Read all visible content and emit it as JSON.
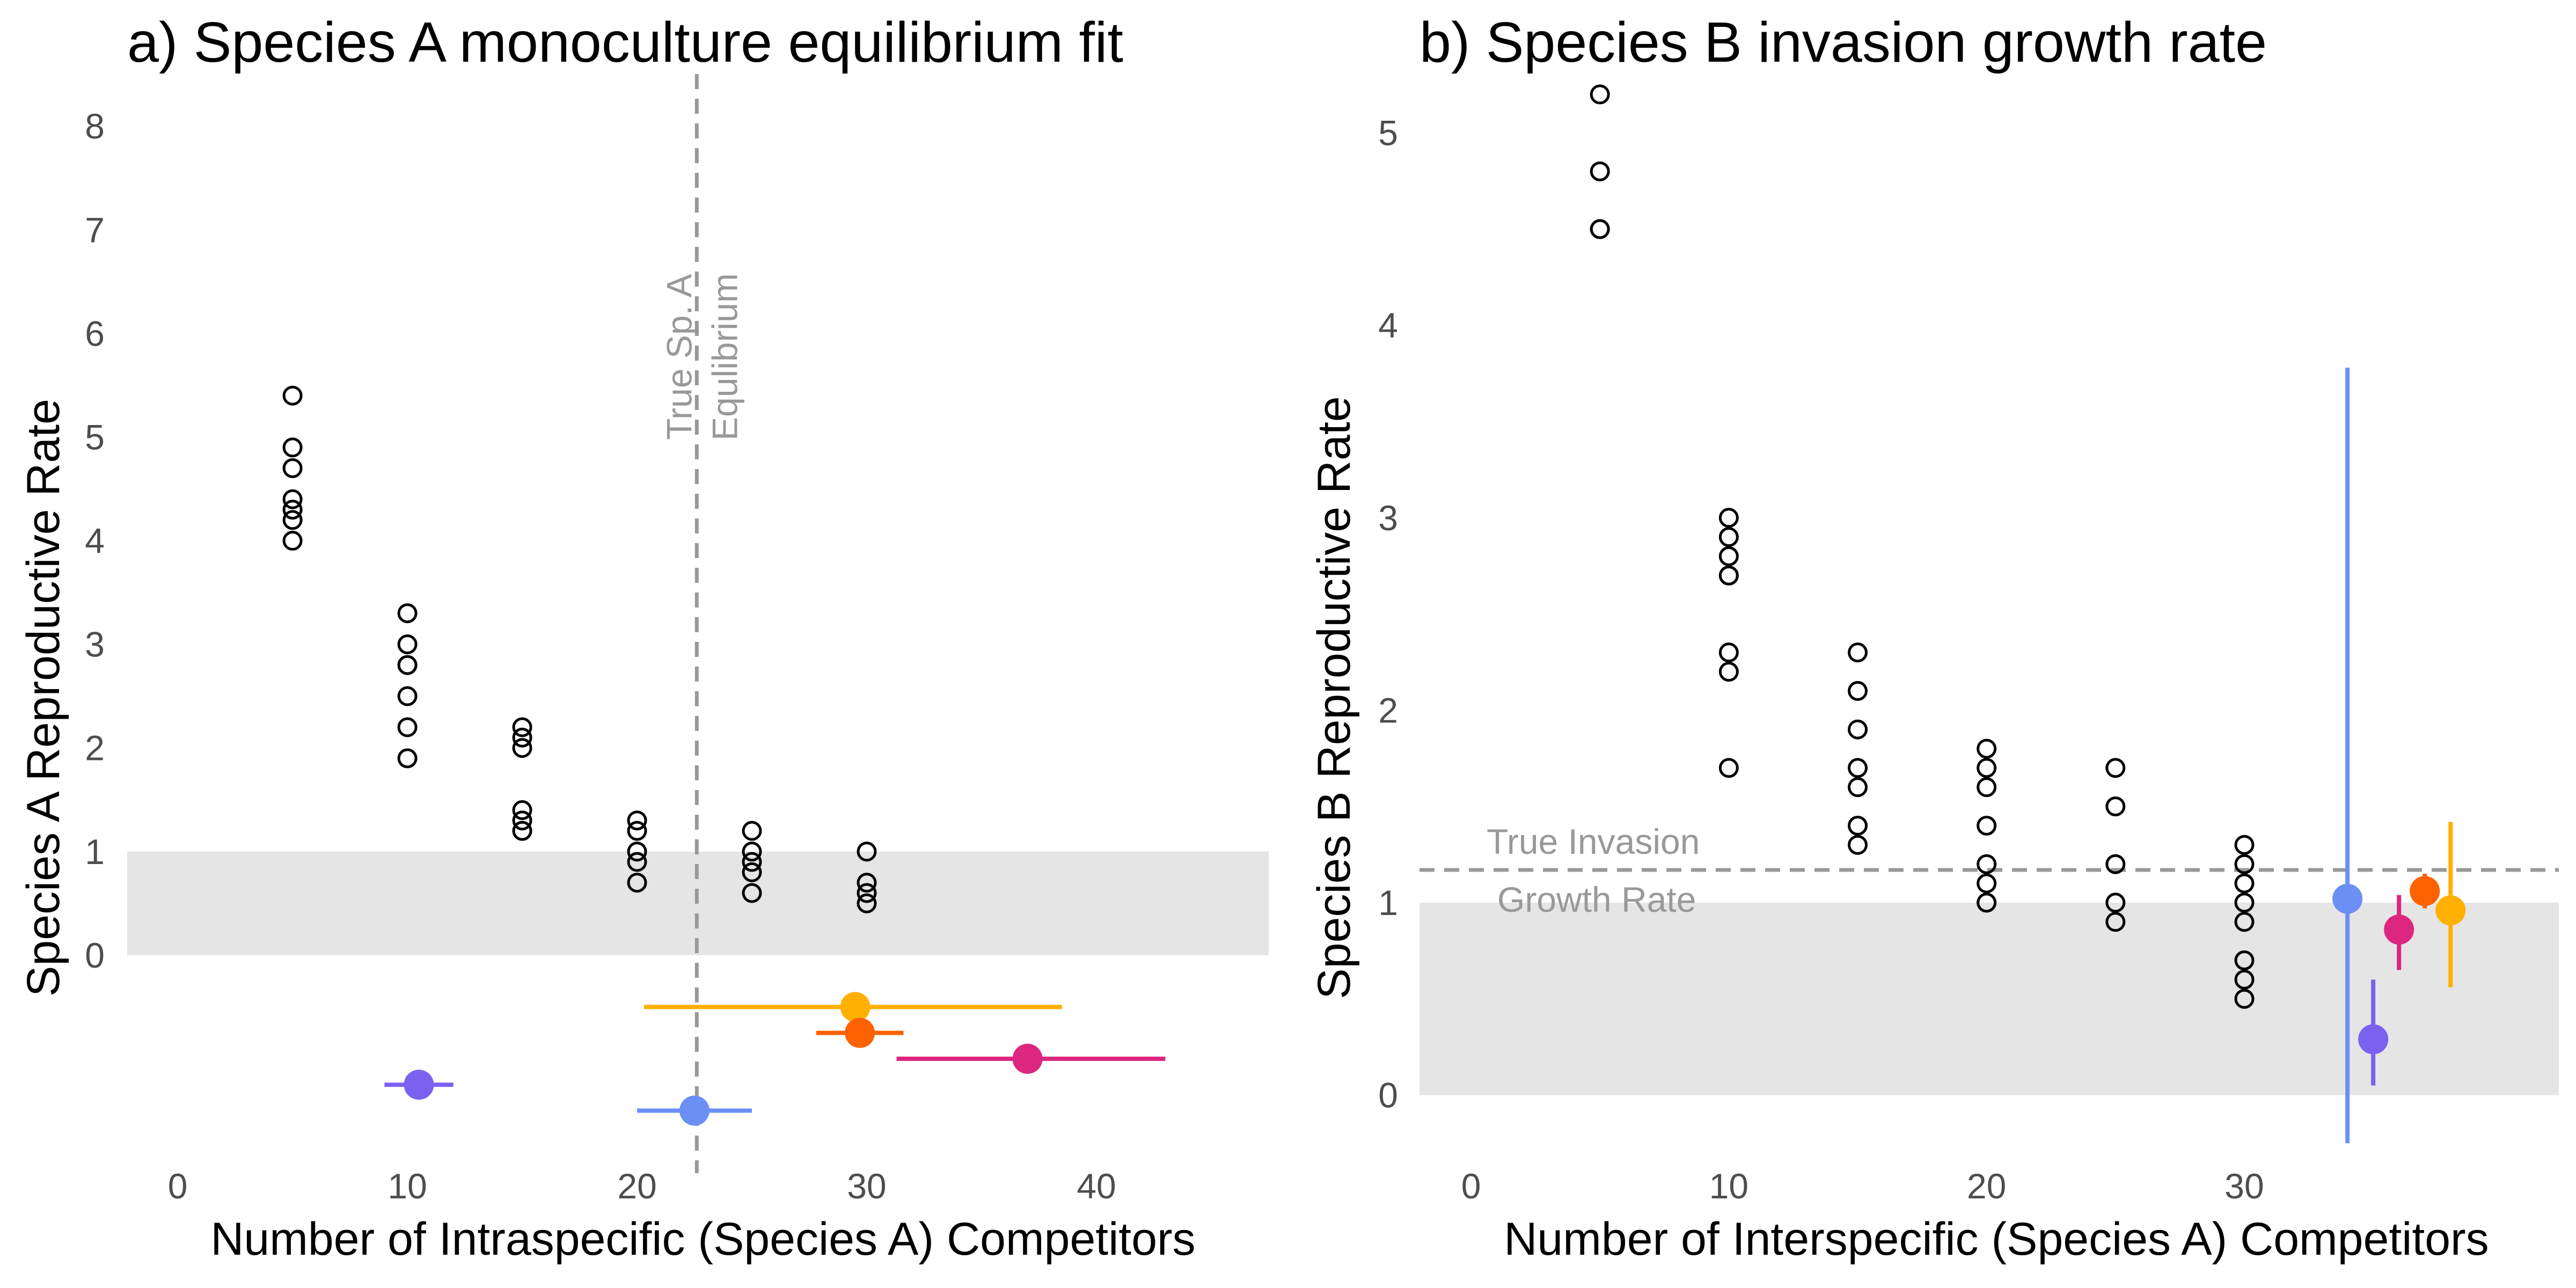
{
  "chart_data": [
    {
      "type": "scatter",
      "title": "a) Species A monoculture equilibrium fit",
      "xlabel": "Number of Intraspecific (Species A) Competitors",
      "ylabel": "Species A Reproductive Rate",
      "xlim": [
        -2.2,
        47.5
      ],
      "ylim": [
        -2,
        8.4
      ],
      "xticks": [
        0,
        10,
        20,
        30,
        40
      ],
      "yticks": [
        0,
        1,
        2,
        3,
        4,
        5,
        6,
        7,
        8
      ],
      "grid": false,
      "shaded_band": {
        "y0": 0,
        "y1": 1,
        "color": "#e5e5e5"
      },
      "vline": {
        "x": 22.6,
        "style": "dashed",
        "color": "#999999",
        "label": [
          "True Sp. A",
          "Equlibrium"
        ]
      },
      "observations": [
        {
          "x": 5,
          "y": 5.4
        },
        {
          "x": 5,
          "y": 4.9
        },
        {
          "x": 5,
          "y": 4.7
        },
        {
          "x": 5,
          "y": 4.4
        },
        {
          "x": 5,
          "y": 4.3
        },
        {
          "x": 5,
          "y": 4.2
        },
        {
          "x": 5,
          "y": 4.0
        },
        {
          "x": 10,
          "y": 3.3
        },
        {
          "x": 10,
          "y": 3.0
        },
        {
          "x": 10,
          "y": 2.8
        },
        {
          "x": 10,
          "y": 2.8
        },
        {
          "x": 10,
          "y": 2.5
        },
        {
          "x": 10,
          "y": 2.2
        },
        {
          "x": 10,
          "y": 1.9
        },
        {
          "x": 15,
          "y": 2.2
        },
        {
          "x": 15,
          "y": 2.1
        },
        {
          "x": 15,
          "y": 2.0
        },
        {
          "x": 15,
          "y": 1.4
        },
        {
          "x": 15,
          "y": 1.3
        },
        {
          "x": 15,
          "y": 1.2
        },
        {
          "x": 15,
          "y": 1.2
        },
        {
          "x": 20,
          "y": 1.3
        },
        {
          "x": 20,
          "y": 1.2
        },
        {
          "x": 20,
          "y": 1.0
        },
        {
          "x": 20,
          "y": 0.9
        },
        {
          "x": 20,
          "y": 0.7
        },
        {
          "x": 25,
          "y": 1.2
        },
        {
          "x": 25,
          "y": 1.0
        },
        {
          "x": 25,
          "y": 0.9
        },
        {
          "x": 25,
          "y": 0.8
        },
        {
          "x": 25,
          "y": 0.6
        },
        {
          "x": 30,
          "y": 1.0
        },
        {
          "x": 30,
          "y": 0.7
        },
        {
          "x": 30,
          "y": 0.6
        },
        {
          "x": 30,
          "y": 0.5
        }
      ],
      "estimates": [
        {
          "x": 10.5,
          "xmin": 9.0,
          "xmax": 12.0,
          "y": -1.25,
          "color": "#7b61f0"
        },
        {
          "x": 22.5,
          "xmin": 20.0,
          "xmax": 25.0,
          "y": -1.5,
          "color": "#6b8ff5"
        },
        {
          "x": 29.5,
          "xmin": 20.3,
          "xmax": 38.5,
          "y": -0.5,
          "color": "#ffb000"
        },
        {
          "x": 29.7,
          "xmin": 27.8,
          "xmax": 31.6,
          "y": -0.75,
          "color": "#fe6100"
        },
        {
          "x": 37.0,
          "xmin": 31.3,
          "xmax": 43.0,
          "y": -1.0,
          "color": "#dc267f"
        }
      ]
    },
    {
      "type": "scatter",
      "title": "b) Species B invasion growth rate",
      "xlabel": "Number of Interspecific (Species A) Competitors",
      "ylabel": "Species B Reproductive Rate",
      "xlim": [
        -2,
        42.2
      ],
      "ylim": [
        -0.35,
        5.25
      ],
      "xticks": [
        0,
        10,
        20,
        30
      ],
      "yticks": [
        0,
        1,
        2,
        3,
        4,
        5
      ],
      "grid": false,
      "shaded_band": {
        "y0": 0,
        "y1": 1,
        "color": "#e5e5e5"
      },
      "hline": {
        "y": 1.17,
        "style": "dashed",
        "color": "#999999",
        "label": [
          "True Invasion",
          "Growth Rate"
        ]
      },
      "observations": [
        {
          "x": 5,
          "y": 5.2
        },
        {
          "x": 5,
          "y": 4.8
        },
        {
          "x": 5,
          "y": 4.5
        },
        {
          "x": 5,
          "y": 4.5
        },
        {
          "x": 10,
          "y": 3.0
        },
        {
          "x": 10,
          "y": 2.9
        },
        {
          "x": 10,
          "y": 2.8
        },
        {
          "x": 10,
          "y": 2.7
        },
        {
          "x": 10,
          "y": 2.7
        },
        {
          "x": 10,
          "y": 2.3
        },
        {
          "x": 10,
          "y": 2.2
        },
        {
          "x": 10,
          "y": 1.7
        },
        {
          "x": 15,
          "y": 2.3
        },
        {
          "x": 15,
          "y": 2.1
        },
        {
          "x": 15,
          "y": 1.9
        },
        {
          "x": 15,
          "y": 1.7
        },
        {
          "x": 15,
          "y": 1.6
        },
        {
          "x": 15,
          "y": 1.4
        },
        {
          "x": 15,
          "y": 1.3
        },
        {
          "x": 20,
          "y": 1.8
        },
        {
          "x": 20,
          "y": 1.7
        },
        {
          "x": 20,
          "y": 1.6
        },
        {
          "x": 20,
          "y": 1.4
        },
        {
          "x": 20,
          "y": 1.2
        },
        {
          "x": 20,
          "y": 1.1
        },
        {
          "x": 20,
          "y": 1.0
        },
        {
          "x": 20,
          "y": 1.0
        },
        {
          "x": 25,
          "y": 1.7
        },
        {
          "x": 25,
          "y": 1.5
        },
        {
          "x": 25,
          "y": 1.2
        },
        {
          "x": 25,
          "y": 1.0
        },
        {
          "x": 25,
          "y": 0.9
        },
        {
          "x": 30,
          "y": 1.3
        },
        {
          "x": 30,
          "y": 1.2
        },
        {
          "x": 30,
          "y": 1.1
        },
        {
          "x": 30,
          "y": 1.0
        },
        {
          "x": 30,
          "y": 0.9
        },
        {
          "x": 30,
          "y": 0.7
        },
        {
          "x": 30,
          "y": 0.6
        },
        {
          "x": 30,
          "y": 0.5
        }
      ],
      "estimates": [
        {
          "x": 34.0,
          "y": 1.02,
          "ymin": -0.25,
          "ymax": 3.78,
          "color": "#6b8ff5"
        },
        {
          "x": 35.0,
          "y": 0.29,
          "ymin": 0.05,
          "ymax": 0.6,
          "color": "#7b61f0"
        },
        {
          "x": 36.0,
          "y": 0.86,
          "ymin": 0.65,
          "ymax": 1.04,
          "color": "#dc267f"
        },
        {
          "x": 37.0,
          "y": 1.06,
          "ymin": 0.97,
          "ymax": 1.15,
          "color": "#fe6100"
        },
        {
          "x": 38.0,
          "y": 0.96,
          "ymin": 0.56,
          "ymax": 1.42,
          "color": "#ffb000"
        }
      ]
    }
  ]
}
